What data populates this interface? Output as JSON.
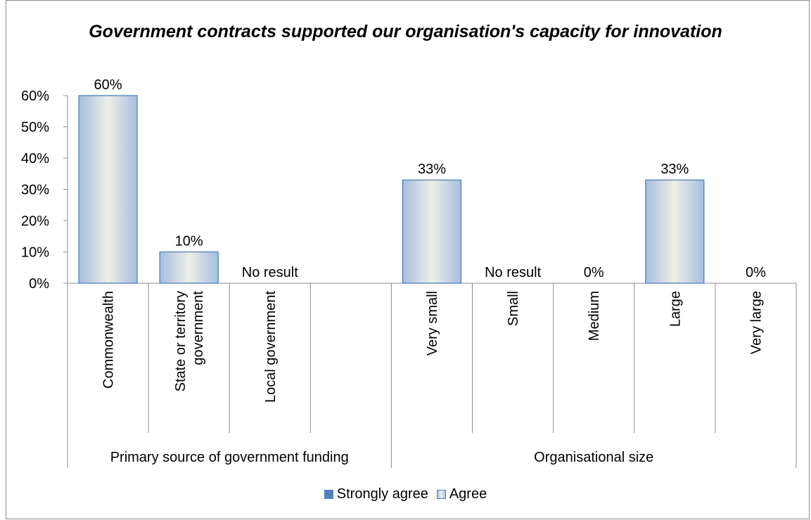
{
  "chart_data": {
    "type": "bar",
    "title": "Government contracts supported our organisation's capacity for innovation",
    "ylim": [
      0,
      60
    ],
    "yticks": [
      "0%",
      "10%",
      "20%",
      "30%",
      "40%",
      "50%",
      "60%"
    ],
    "grid": false,
    "legend_position": "bottom",
    "categories": [
      "Commonwealth",
      "State or territory government",
      "Local government",
      "",
      "Very small",
      "Small",
      "Medium",
      "Large",
      "Very large"
    ],
    "groups": [
      {
        "label": "Primary source of government funding",
        "start": 0,
        "end": 3
      },
      {
        "label": "Organisational size",
        "start": 4,
        "end": 8
      }
    ],
    "series": [
      {
        "name": "Strongly agree",
        "color": "#4f81bd",
        "values": [
          null,
          null,
          null,
          null,
          null,
          null,
          null,
          null,
          null
        ]
      },
      {
        "name": "Agree",
        "color": "#dbe4ef",
        "values": [
          60,
          10,
          null,
          null,
          33,
          null,
          0,
          33,
          0
        ]
      }
    ],
    "data_labels": [
      "60%",
      "10%",
      "No result",
      "",
      "33%",
      "No result",
      "0%",
      "33%",
      "0%"
    ]
  }
}
